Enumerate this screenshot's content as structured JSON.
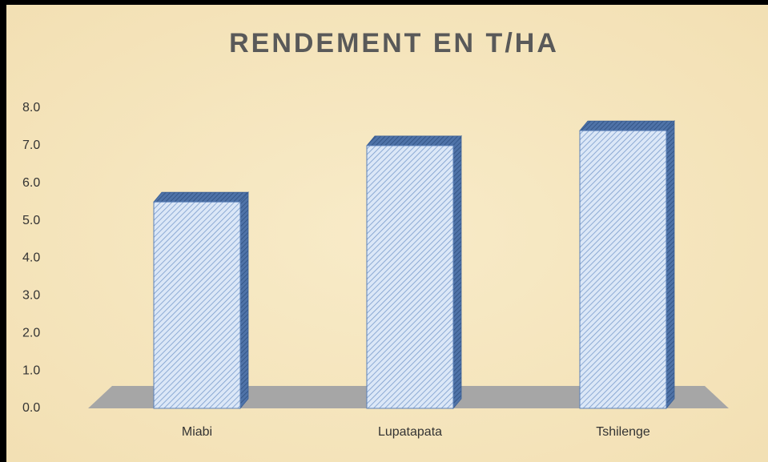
{
  "chart_data": {
    "type": "bar",
    "title": "RENDEMENT EN T/HA",
    "categories": [
      "Miabi",
      "Lupatapata",
      "Tshilenge"
    ],
    "values": [
      5.5,
      7.0,
      7.4
    ],
    "color": "#c5d9f1",
    "ylim": [
      0,
      8
    ],
    "yticks": [
      {
        "value": 0,
        "label": "0.0"
      },
      {
        "value": 1,
        "label": "1.0"
      },
      {
        "value": 2,
        "label": "2.0"
      },
      {
        "value": 3,
        "label": "3.0"
      },
      {
        "value": 4,
        "label": "4.0"
      },
      {
        "value": 5,
        "label": "5.0"
      },
      {
        "value": 6,
        "label": "6.0"
      },
      {
        "value": 7,
        "label": "7.0"
      },
      {
        "value": 8,
        "label": "8.0"
      }
    ],
    "grid": false
  }
}
